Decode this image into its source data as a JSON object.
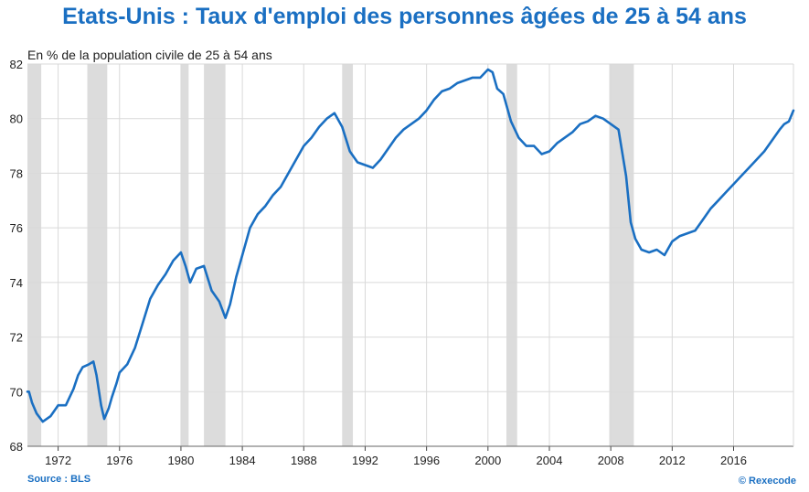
{
  "title": "Etats-Unis : Taux d'emploi des personnes âgées de 25 à 54 ans",
  "subtitle": "En % de la population civile de 25 à 54 ans",
  "source": "Source : BLS",
  "copyright": "© Rexecode",
  "colors": {
    "title": "#1a6fc2",
    "line": "#1a6fc2",
    "recession": "#dcdcdc",
    "grid": "#d9d9d9"
  },
  "chart_data": {
    "type": "line",
    "xlim": [
      1970.0,
      2019.9
    ],
    "ylim": [
      68,
      82
    ],
    "y_ticks": [
      "68",
      "70",
      "72",
      "74",
      "76",
      "78",
      "80",
      "82"
    ],
    "x_ticks": [
      "1972",
      "1976",
      "1980",
      "1984",
      "1988",
      "1992",
      "1996",
      "2000",
      "2004",
      "2008",
      "2012",
      "2016"
    ],
    "grid": true,
    "recessions": [
      [
        1970.0,
        1970.9
      ],
      [
        1973.9,
        1975.2
      ],
      [
        1980.0,
        1980.5
      ],
      [
        1981.5,
        1982.9
      ],
      [
        1990.5,
        1991.2
      ],
      [
        2001.2,
        2001.9
      ],
      [
        2007.9,
        2009.5
      ]
    ],
    "series": [
      {
        "name": "",
        "x": [
          1970.0,
          1970.1,
          1970.3,
          1970.6,
          1971.0,
          1971.5,
          1972.0,
          1972.5,
          1973.0,
          1973.3,
          1973.6,
          1974.0,
          1974.3,
          1974.5,
          1974.8,
          1975.0,
          1975.3,
          1975.5,
          1975.8,
          1976.0,
          1976.5,
          1977.0,
          1977.5,
          1978.0,
          1978.5,
          1979.0,
          1979.5,
          1980.0,
          1980.3,
          1980.6,
          1981.0,
          1981.5,
          1982.0,
          1982.5,
          1982.9,
          1983.2,
          1983.6,
          1984.0,
          1984.5,
          1985.0,
          1985.5,
          1986.0,
          1986.5,
          1987.0,
          1987.5,
          1988.0,
          1988.5,
          1989.0,
          1989.5,
          1990.0,
          1990.5,
          1991.0,
          1991.5,
          1992.0,
          1992.5,
          1993.0,
          1993.5,
          1994.0,
          1994.5,
          1995.0,
          1995.5,
          1996.0,
          1996.5,
          1997.0,
          1997.5,
          1998.0,
          1998.5,
          1999.0,
          1999.5,
          2000.0,
          2000.3,
          2000.6,
          2001.0,
          2001.5,
          2002.0,
          2002.5,
          2003.0,
          2003.5,
          2004.0,
          2004.5,
          2005.0,
          2005.5,
          2006.0,
          2006.5,
          2007.0,
          2007.5,
          2008.0,
          2008.5,
          2009.0,
          2009.3,
          2009.6,
          2010.0,
          2010.5,
          2011.0,
          2011.5,
          2012.0,
          2012.5,
          2013.0,
          2013.5,
          2014.0,
          2014.5,
          2015.0,
          2015.5,
          2016.0,
          2016.5,
          2017.0,
          2017.5,
          2018.0,
          2018.5,
          2019.0,
          2019.3,
          2019.6,
          2019.9
        ],
        "y": [
          70.0,
          70.0,
          69.6,
          69.2,
          68.9,
          69.1,
          69.5,
          69.5,
          70.1,
          70.6,
          70.9,
          71.0,
          71.1,
          70.6,
          69.5,
          69.0,
          69.4,
          69.8,
          70.3,
          70.7,
          71.0,
          71.6,
          72.5,
          73.4,
          73.9,
          74.3,
          74.8,
          75.1,
          74.6,
          74.0,
          74.5,
          74.6,
          73.7,
          73.3,
          72.7,
          73.2,
          74.2,
          75.0,
          76.0,
          76.5,
          76.8,
          77.2,
          77.5,
          78.0,
          78.5,
          79.0,
          79.3,
          79.7,
          80.0,
          80.2,
          79.7,
          78.8,
          78.4,
          78.3,
          78.2,
          78.5,
          78.9,
          79.3,
          79.6,
          79.8,
          80.0,
          80.3,
          80.7,
          81.0,
          81.1,
          81.3,
          81.4,
          81.5,
          81.5,
          81.8,
          81.7,
          81.1,
          80.9,
          79.9,
          79.3,
          79.0,
          79.0,
          78.7,
          78.8,
          79.1,
          79.3,
          79.5,
          79.8,
          79.9,
          80.1,
          80.0,
          79.8,
          79.6,
          77.9,
          76.2,
          75.6,
          75.2,
          75.1,
          75.2,
          75.0,
          75.5,
          75.7,
          75.8,
          75.9,
          76.3,
          76.7,
          77.0,
          77.3,
          77.6,
          77.9,
          78.2,
          78.5,
          78.8,
          79.2,
          79.6,
          79.8,
          79.9,
          80.3
        ]
      }
    ]
  }
}
